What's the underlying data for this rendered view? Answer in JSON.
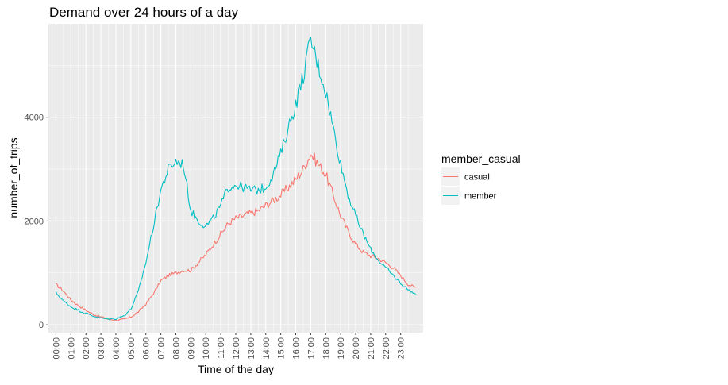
{
  "chart_data": {
    "type": "line",
    "title": "Demand over 24 hours of a day",
    "xlabel": "Time of the day",
    "ylabel": "number_of_trips",
    "x_range_hours": [
      0,
      24
    ],
    "ylim": [
      -150,
      5800
    ],
    "y_ticks": [
      0,
      2000,
      4000
    ],
    "y_tick_labels": [
      "0",
      "2000",
      "4000"
    ],
    "x_ticks": [
      "00:00",
      "01:00",
      "02:00",
      "03:00",
      "04:00",
      "05:00",
      "06:00",
      "07:00",
      "08:00",
      "09:00",
      "10:00",
      "11:00",
      "12:00",
      "13:00",
      "14:00",
      "15:00",
      "16:00",
      "17:00",
      "18:00",
      "19:00",
      "20:00",
      "21:00",
      "22:00",
      "23:00"
    ],
    "grid": true,
    "legend": {
      "title": "member_casual",
      "position": "right",
      "entries": [
        "casual",
        "member"
      ]
    },
    "series": [
      {
        "name": "casual",
        "color": "#F8766D",
        "points": [
          [
            0.0,
            780
          ],
          [
            0.5,
            650
          ],
          [
            1.0,
            480
          ],
          [
            1.5,
            370
          ],
          [
            2.0,
            280
          ],
          [
            2.5,
            200
          ],
          [
            3.0,
            150
          ],
          [
            3.5,
            110
          ],
          [
            4.0,
            90
          ],
          [
            4.5,
            100
          ],
          [
            5.0,
            150
          ],
          [
            5.5,
            250
          ],
          [
            6.0,
            400
          ],
          [
            6.5,
            600
          ],
          [
            7.0,
            850
          ],
          [
            7.5,
            950
          ],
          [
            8.0,
            1000
          ],
          [
            8.5,
            1050
          ],
          [
            9.0,
            1050
          ],
          [
            9.5,
            1200
          ],
          [
            10.0,
            1350
          ],
          [
            10.5,
            1550
          ],
          [
            11.0,
            1750
          ],
          [
            11.5,
            1950
          ],
          [
            12.0,
            2050
          ],
          [
            12.5,
            2100
          ],
          [
            13.0,
            2150
          ],
          [
            13.5,
            2200
          ],
          [
            14.0,
            2300
          ],
          [
            14.5,
            2400
          ],
          [
            15.0,
            2500
          ],
          [
            15.5,
            2650
          ],
          [
            16.0,
            2800
          ],
          [
            16.5,
            3000
          ],
          [
            17.0,
            3300
          ],
          [
            17.5,
            3100
          ],
          [
            18.0,
            2900
          ],
          [
            18.5,
            2500
          ],
          [
            19.0,
            2100
          ],
          [
            19.5,
            1800
          ],
          [
            20.0,
            1550
          ],
          [
            20.5,
            1400
          ],
          [
            21.0,
            1330
          ],
          [
            21.5,
            1280
          ],
          [
            22.0,
            1200
          ],
          [
            22.5,
            1100
          ],
          [
            23.0,
            950
          ],
          [
            23.5,
            780
          ],
          [
            24.0,
            720
          ]
        ]
      },
      {
        "name": "member",
        "color": "#00BFC4",
        "points": [
          [
            0.0,
            620
          ],
          [
            0.5,
            460
          ],
          [
            1.0,
            350
          ],
          [
            1.5,
            280
          ],
          [
            2.0,
            220
          ],
          [
            2.5,
            170
          ],
          [
            3.0,
            130
          ],
          [
            3.5,
            110
          ],
          [
            4.0,
            120
          ],
          [
            4.5,
            170
          ],
          [
            5.0,
            300
          ],
          [
            5.5,
            650
          ],
          [
            6.0,
            1200
          ],
          [
            6.5,
            1900
          ],
          [
            7.0,
            2600
          ],
          [
            7.5,
            3000
          ],
          [
            8.0,
            3150
          ],
          [
            8.5,
            3100
          ],
          [
            9.0,
            2200
          ],
          [
            9.5,
            2000
          ],
          [
            10.0,
            1900
          ],
          [
            10.5,
            2050
          ],
          [
            11.0,
            2300
          ],
          [
            11.5,
            2650
          ],
          [
            12.0,
            2700
          ],
          [
            12.5,
            2650
          ],
          [
            13.0,
            2600
          ],
          [
            13.5,
            2600
          ],
          [
            14.0,
            2650
          ],
          [
            14.5,
            2900
          ],
          [
            15.0,
            3300
          ],
          [
            15.5,
            3800
          ],
          [
            16.0,
            4250
          ],
          [
            16.5,
            4800
          ],
          [
            17.0,
            5500
          ],
          [
            17.5,
            5000
          ],
          [
            18.0,
            4500
          ],
          [
            18.5,
            3800
          ],
          [
            19.0,
            3100
          ],
          [
            19.5,
            2500
          ],
          [
            20.0,
            2100
          ],
          [
            20.5,
            1750
          ],
          [
            21.0,
            1450
          ],
          [
            21.5,
            1250
          ],
          [
            22.0,
            1100
          ],
          [
            22.5,
            950
          ],
          [
            23.0,
            800
          ],
          [
            23.5,
            680
          ],
          [
            24.0,
            590
          ]
        ]
      }
    ]
  }
}
